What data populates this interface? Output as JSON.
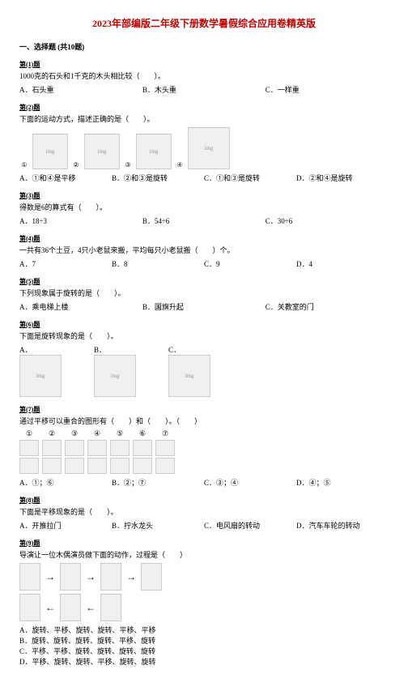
{
  "title": "2023年部编版二年级下册数学暑假综合应用卷精英版",
  "section1": "一、选择题 (共10题)",
  "q1": {
    "label": "第(1)题",
    "stem": "1000克的石头和1千克的木头相比较（　　）。",
    "opts": [
      "A．石头重",
      "B．木头重",
      "C．一样重"
    ]
  },
  "q2": {
    "label": "第(2)题",
    "stem": "下面的运动方式，描述正确的是（　　）。",
    "nums": [
      "①",
      "②",
      "③",
      "④"
    ],
    "opts": [
      "A．①和④是平移",
      "B．②和③是旋转",
      "C．①和③是旋转",
      "D．②和④是旋转"
    ]
  },
  "q3": {
    "label": "第(3)题",
    "stem": "得数是6的算式有（　　）。",
    "opts": [
      "A．18÷3",
      "B．54÷6",
      "C．30÷6"
    ]
  },
  "q4": {
    "label": "第(4)题",
    "stem": "一共有36个土豆，4只小老鼠来搬，平均每只小老鼠搬（　　）个。",
    "opts": [
      "A．7",
      "B．8",
      "C．9",
      "D．4"
    ]
  },
  "q5": {
    "label": "第(5)题",
    "stem": "下列现象属于旋转的是（　　）。",
    "opts": [
      "A．乘电梯上楼",
      "B．国旗升起",
      "C．关教室的门"
    ]
  },
  "q6": {
    "label": "第(6)题",
    "stem": "下面是旋转现象的是（　　）。",
    "opts": [
      "A．",
      "B．",
      "C．"
    ]
  },
  "q7": {
    "label": "第(7)题",
    "stem": "通过平移可以重合的图形有（　　）和（　　）。（　　）",
    "nums": [
      "①",
      "②",
      "③",
      "④",
      "⑤",
      "⑥",
      "⑦"
    ],
    "opts": [
      "A．①；⑥",
      "B．②；⑦",
      "C．③；④",
      "D．④；⑤"
    ]
  },
  "q8": {
    "label": "第(8)题",
    "stem": "下面是平移现象的是（　　）。",
    "opts": [
      "A．开推拉门",
      "B．拧水龙头",
      "C．电风扇的转动",
      "D．汽车车轮的转动"
    ]
  },
  "q9": {
    "label": "第(9)题",
    "stem": "导演让一位木偶演员做下面的动作，过程是（　　）",
    "opts": [
      "A．旋转、平移、旋转、旋转、平移、平移",
      "B．旋转、旋转、旋转、旋转、平移、旋转",
      "C．平移、平移、旋转、旋转、旋转、旋转",
      "D．平移、旋转、旋转、平移、旋转、旋转"
    ]
  }
}
